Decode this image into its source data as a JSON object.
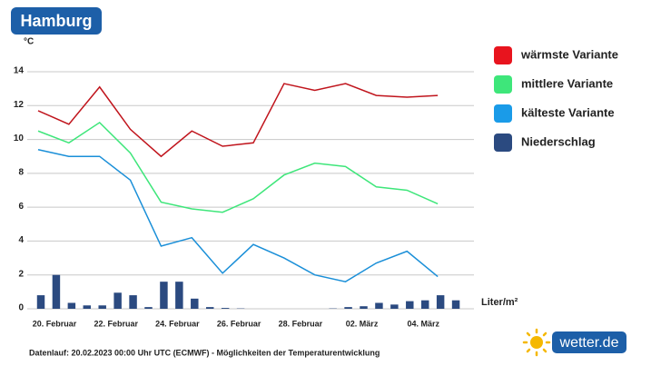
{
  "title": "Hamburg",
  "footnote": "Datenlauf: 20.02.2023 00:00 Uhr UTC (ECMWF) - Möglichkeiten der Temperaturentwicklung",
  "logo": "wetter.de",
  "chart_data": [
    {
      "type": "line",
      "ylabel": "°C",
      "categories": [
        "20. Februar",
        null,
        "22. Februar",
        null,
        "24. Februar",
        null,
        "26. Februar",
        null,
        "28. Februar",
        null,
        "02. März",
        null,
        "04. März",
        null
      ],
      "series": [
        {
          "name": "wärmste Variante",
          "color": "#c0141c",
          "legend_color": "#e8141e",
          "values": [
            11.7,
            10.9,
            13.1,
            10.6,
            9.0,
            10.5,
            9.6,
            9.8,
            13.3,
            12.9,
            13.3,
            12.6,
            12.5,
            12.6
          ]
        },
        {
          "name": "mittlere Variante",
          "color": "#3ee67a",
          "legend_color": "#3ee67a",
          "values": [
            10.5,
            9.8,
            11.0,
            9.2,
            6.3,
            5.9,
            5.7,
            6.5,
            7.9,
            8.6,
            8.4,
            7.2,
            7.0,
            6.2
          ]
        },
        {
          "name": "kälteste Variante",
          "color": "#1a8fd8",
          "legend_color": "#1a9be8",
          "values": [
            9.4,
            9.0,
            9.0,
            7.6,
            3.7,
            4.2,
            2.1,
            3.8,
            3.0,
            2.0,
            1.6,
            2.7,
            3.4,
            1.9
          ]
        }
      ],
      "ylim": [
        0,
        14
      ],
      "yticks": [
        0,
        2,
        4,
        6,
        8,
        10,
        12,
        14
      ],
      "grid": true
    },
    {
      "type": "bar",
      "ylabel": "Liter/m²",
      "categories": [
        null,
        null,
        null,
        null,
        null,
        null,
        null,
        null,
        null,
        null,
        null,
        null,
        null,
        null,
        null,
        null,
        null,
        null,
        null,
        null,
        null,
        null,
        null,
        null,
        null,
        null,
        null,
        null
      ],
      "series": [
        {
          "name": "Niederschlag",
          "color": "#2b4a80",
          "legend_color": "#2b4a80",
          "values": [
            0.8,
            2.0,
            0.35,
            0.2,
            0.2,
            0.95,
            0.8,
            0.1,
            1.6,
            1.6,
            0.6,
            0.1,
            0.05,
            0.02,
            0,
            0,
            0,
            0,
            0,
            0.02,
            0.1,
            0.15,
            0.35,
            0.25,
            0.45,
            0.5,
            0.8,
            0.5
          ]
        }
      ],
      "ylim": [
        0,
        14
      ]
    }
  ]
}
